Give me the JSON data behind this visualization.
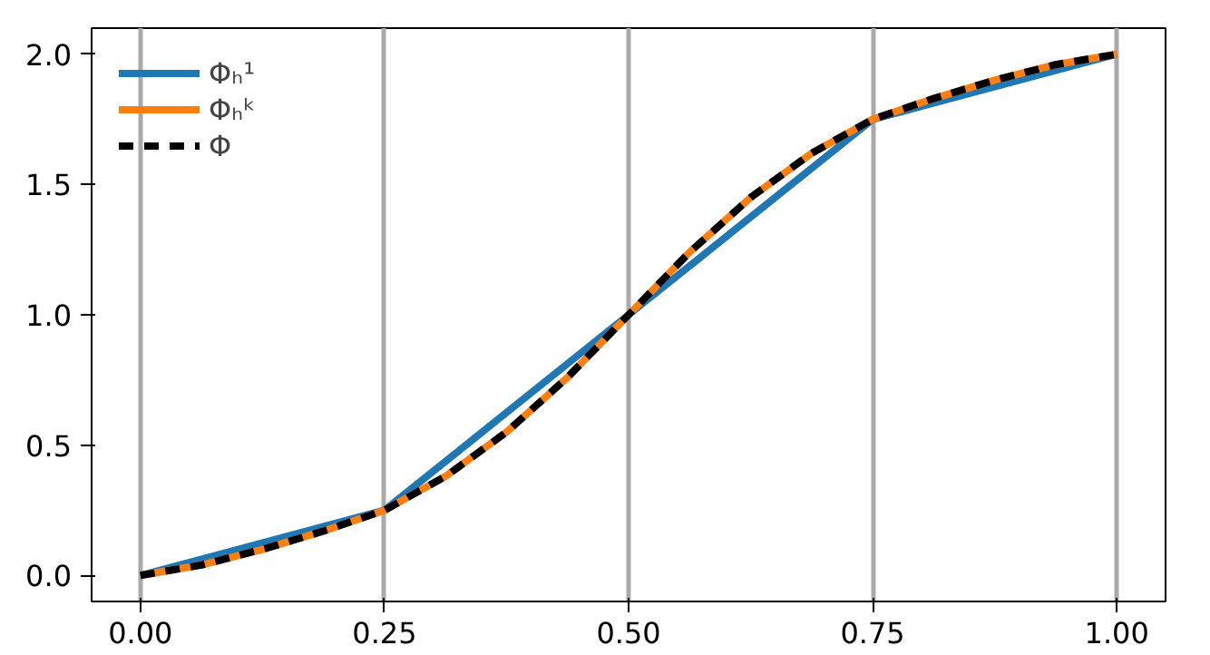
{
  "chart_data": {
    "type": "line",
    "xlim": [
      -0.05,
      1.05
    ],
    "ylim": [
      -0.1,
      2.1
    ],
    "xticks": [
      {
        "value": 0,
        "label": "0.00"
      },
      {
        "value": 0.25,
        "label": "0.25"
      },
      {
        "value": 0.5,
        "label": "0.50"
      },
      {
        "value": 0.75,
        "label": "0.75"
      },
      {
        "value": 1,
        "label": "1.00"
      }
    ],
    "yticks": [
      {
        "value": 0,
        "label": "0.0"
      },
      {
        "value": 0.5,
        "label": "0.5"
      },
      {
        "value": 1,
        "label": "1.0"
      },
      {
        "value": 1.5,
        "label": "1.5"
      },
      {
        "value": 2,
        "label": "2.0"
      }
    ],
    "grid": "x",
    "legend": "top left",
    "series": [
      {
        "name": "Φₕ¹",
        "color": "#1f77b4",
        "x": [
          0,
          0.25,
          0.5,
          0.75,
          1
        ],
        "values": [
          0,
          0.25,
          1,
          1.75,
          2
        ]
      },
      {
        "name": "Φₕᵏ",
        "color": "#ff7f0e",
        "x": [
          0,
          0.0625,
          0.125,
          0.1875,
          0.25,
          0.3125,
          0.375,
          0.4375,
          0.5,
          0.5625,
          0.625,
          0.6875,
          0.75,
          0.8125,
          0.875,
          0.9375,
          1
        ],
        "values": [
          0,
          0.04,
          0.1,
          0.17,
          0.25,
          0.38,
          0.55,
          0.76,
          1,
          1.24,
          1.45,
          1.62,
          1.75,
          1.83,
          1.9,
          1.96,
          2
        ]
      },
      {
        "name": "Φ",
        "color": "#000000",
        "line_style": "dashed",
        "x": [
          0,
          0.0625,
          0.125,
          0.1875,
          0.25,
          0.3125,
          0.375,
          0.4375,
          0.5,
          0.5625,
          0.625,
          0.6875,
          0.75,
          0.8125,
          0.875,
          0.9375,
          1
        ],
        "values": [
          0,
          0.04,
          0.1,
          0.17,
          0.25,
          0.38,
          0.55,
          0.76,
          1,
          1.24,
          1.45,
          1.62,
          1.75,
          1.83,
          1.9,
          1.96,
          2
        ]
      }
    ]
  }
}
